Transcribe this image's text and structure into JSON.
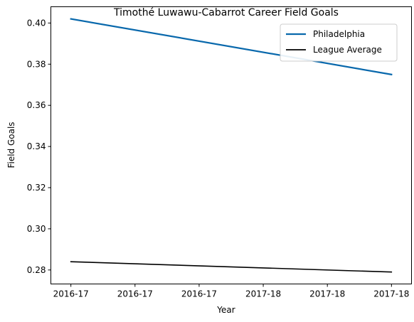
{
  "chart_data": {
    "type": "line",
    "title": "Timothé Luwawu-Cabarrot Career Field Goals",
    "xlabel": "Year",
    "ylabel": "Field Goals",
    "x_tick_labels": [
      "2016-17",
      "2016-17",
      "2016-17",
      "2017-18",
      "2017-18",
      "2017-18"
    ],
    "y_ticks": [
      "0.28",
      "0.30",
      "0.32",
      "0.34",
      "0.36",
      "0.38",
      "0.40"
    ],
    "y_tick_values": [
      0.28,
      0.3,
      0.32,
      0.34,
      0.36,
      0.38,
      0.4
    ],
    "ylim": [
      0.2732,
      0.4079
    ],
    "xlim": [
      -0.0625,
      1.0625
    ],
    "grid": false,
    "legend_position": "top-right",
    "series": [
      {
        "name": "Philadelphia",
        "color": "#0868ac",
        "x": [
          0,
          1
        ],
        "y": [
          0.402,
          0.375
        ]
      },
      {
        "name": "League Average",
        "color": "#000000",
        "x": [
          0,
          1
        ],
        "y": [
          0.284,
          0.279
        ]
      }
    ]
  }
}
